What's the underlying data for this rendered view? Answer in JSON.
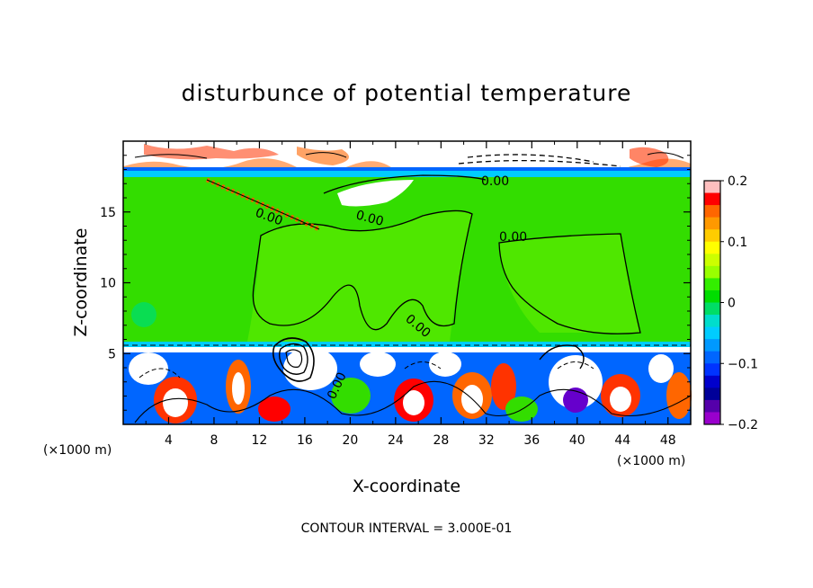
{
  "chart_data": {
    "type": "heatmap",
    "title": "disturbunce of potential temperature",
    "xlabel": "X-coordinate",
    "ylabel": "Z-coordinate",
    "x_unit": "(×1000 m)",
    "x_ticks": [
      4,
      8,
      12,
      16,
      20,
      24,
      28,
      32,
      36,
      40,
      44,
      48
    ],
    "y_ticks": [
      5,
      10,
      15
    ],
    "xlim": [
      0,
      50
    ],
    "ylim": [
      0,
      20
    ],
    "colorbar": {
      "min": -0.2,
      "max": 0.2,
      "tick_values": [
        0.2,
        0.1,
        0,
        -0.1,
        -0.2
      ],
      "tick_labels": [
        "0.2",
        "0.1",
        "0",
        "−0.1",
        "−0.2"
      ],
      "colors": [
        "#ffbfbf",
        "#ff0000",
        "#ff6600",
        "#ff9900",
        "#ffcc00",
        "#ffff00",
        "#ccff00",
        "#99ff00",
        "#33ee00",
        "#00dd00",
        "#00dd66",
        "#00ddcc",
        "#00ccff",
        "#0099ff",
        "#0066ff",
        "#0033ff",
        "#0000cc",
        "#000099",
        "#5500aa",
        "#9900cc"
      ]
    },
    "contour_labels": [
      "0.00",
      "0.00",
      "0.00",
      "0.00",
      "0.00",
      "0.00"
    ],
    "contour_interval_text": "CONTOUR INTERVAL = 3.000E-01",
    "grid": false
  }
}
